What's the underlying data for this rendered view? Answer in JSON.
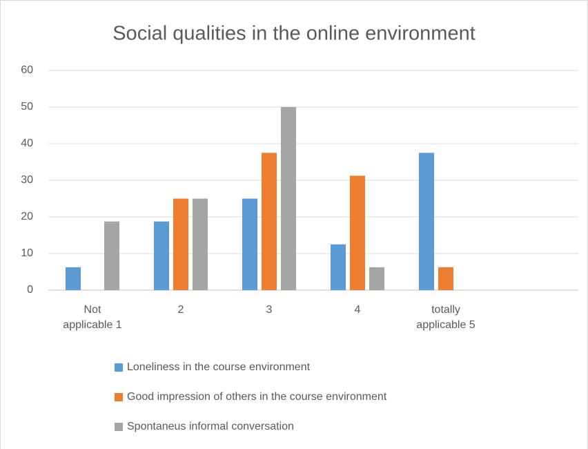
{
  "chart_data": {
    "type": "bar",
    "title": "Social qualities in the online environment",
    "categories": [
      "Not applicable 1",
      "2",
      "3",
      "4",
      "totally applicable 5",
      null
    ],
    "series": [
      {
        "name": "Loneliness in the course environment",
        "color": "#5b9bd5",
        "values": [
          6.25,
          18.75,
          25,
          12.5,
          37.5,
          null
        ]
      },
      {
        "name": "Good impression of others in the course environment",
        "color": "#ed7d31",
        "values": [
          0,
          25,
          37.5,
          31.25,
          6.25,
          null
        ]
      },
      {
        "name": "Spontaneus informal conversation",
        "color": "#a5a5a5",
        "values": [
          18.75,
          25,
          50,
          6.25,
          0,
          null
        ]
      }
    ],
    "ylim": [
      0,
      60
    ],
    "yticks": [
      0,
      10,
      20,
      30,
      40,
      50,
      60
    ],
    "grid": true
  }
}
